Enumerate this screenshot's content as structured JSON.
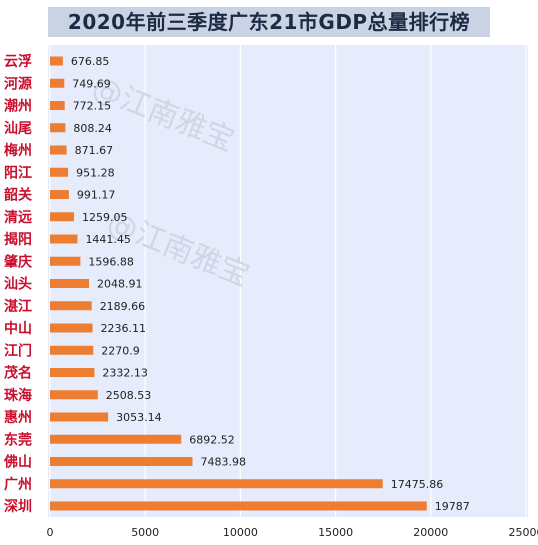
{
  "chart_data": {
    "type": "bar",
    "orientation": "horizontal",
    "title": "2020年前三季度广东21市GDP总量排行榜",
    "categories": [
      "云浮",
      "河源",
      "潮州",
      "汕尾",
      "梅州",
      "阳江",
      "韶关",
      "清远",
      "揭阳",
      "肇庆",
      "汕头",
      "湛江",
      "中山",
      "江门",
      "茂名",
      "珠海",
      "惠州",
      "东莞",
      "佛山",
      "广州",
      "深圳"
    ],
    "values": [
      676.85,
      749.69,
      772.15,
      808.24,
      871.67,
      951.28,
      991.17,
      1259.05,
      1441.45,
      1596.88,
      2048.91,
      2189.66,
      2236.11,
      2270.9,
      2332.13,
      2508.53,
      3053.14,
      6892.52,
      7483.98,
      17475.86,
      19787
    ],
    "value_labels": [
      "676.85",
      "749.69",
      "772.15",
      "808.24",
      "871.67",
      "951.28",
      "991.17",
      "1259.05",
      "1441.45",
      "1596.88",
      "2048.91",
      "2189.66",
      "2236.11",
      "2270.9",
      "2332.13",
      "2508.53",
      "3053.14",
      "6892.52",
      "7483.98",
      "17475.86",
      "19787"
    ],
    "xlim": [
      0,
      25000
    ],
    "x_ticks": [
      "0",
      "5000",
      "10000",
      "15000",
      "20000",
      "25000"
    ],
    "xlabel": "",
    "ylabel": "",
    "grid": "vertical",
    "legend": "none",
    "colors": {
      "bar": "#ed7d31",
      "plot_background": "#e6ecfb",
      "grid": "#ffffff",
      "category_label": "#c8102e",
      "title_background": "#c9d3e4"
    }
  },
  "watermark": {
    "text": "@江南雅宝"
  }
}
